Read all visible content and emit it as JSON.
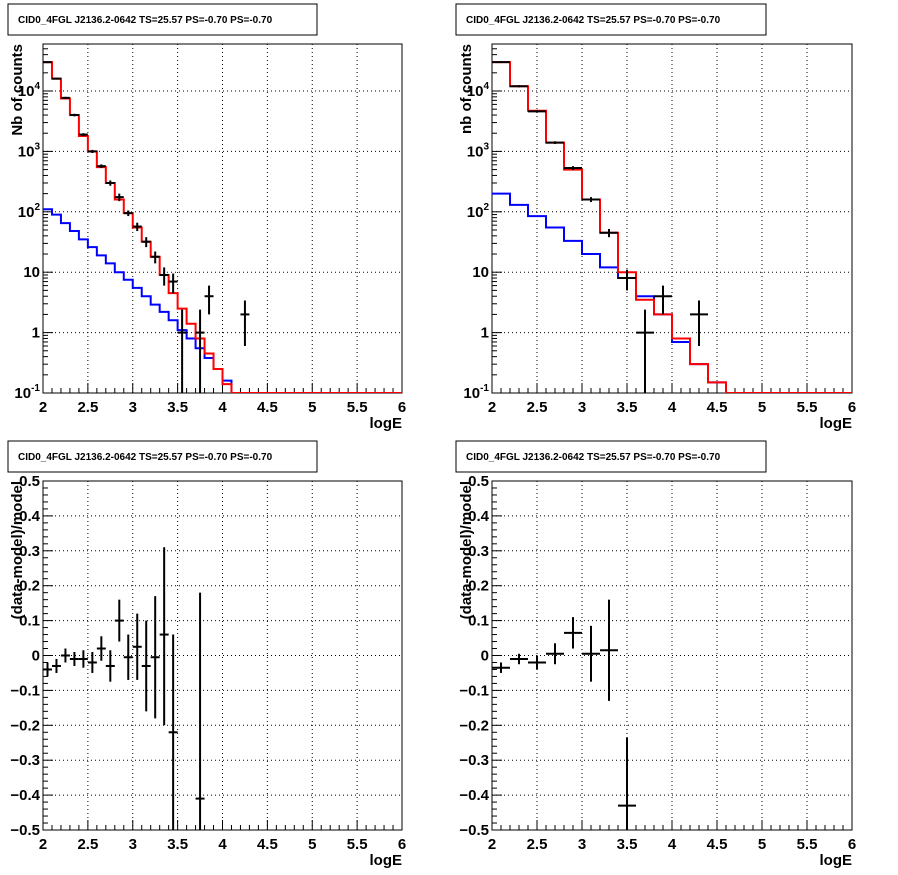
{
  "chart_data": [
    {
      "type": "line",
      "title": "CID0_4FGL J2136.2-0642 TS=25.57 PS=-0.70 PS=-0.70",
      "xlabel": "logE",
      "ylabel": "Nb of counts",
      "xlim": [
        2,
        6
      ],
      "ylim": [
        0.1,
        60000
      ],
      "yscale": "log",
      "grid": true,
      "x_ticks": [
        "2",
        "2.5",
        "3",
        "3.5",
        "4",
        "4.5",
        "5",
        "5.5",
        "6"
      ],
      "y_ticks": [
        {
          "v": 0.1,
          "label": "10",
          "sup": "-1"
        },
        {
          "v": 1,
          "label": "1",
          "sup": ""
        },
        {
          "v": 10,
          "label": "10",
          "sup": ""
        },
        {
          "v": 100,
          "label": "10",
          "sup": "2"
        },
        {
          "v": 1000,
          "label": "10",
          "sup": "3"
        },
        {
          "v": 10000,
          "label": "10",
          "sup": "4"
        }
      ],
      "bin_edges": [
        2,
        2.1,
        2.2,
        2.3,
        2.4,
        2.5,
        2.6,
        2.7,
        2.8,
        2.9,
        3.0,
        3.1,
        3.2,
        3.3,
        3.4,
        3.5,
        3.6,
        3.7,
        3.8,
        3.9,
        4.0,
        4.1,
        4.2,
        4.3,
        4.4,
        4.5,
        4.6,
        4.7,
        4.8,
        4.9,
        5.0,
        5.1,
        5.2,
        5.3,
        5.4,
        5.5,
        5.6,
        5.7,
        5.8,
        5.9,
        6.0
      ],
      "series": [
        {
          "color": "#0000ff",
          "style": "hist",
          "values": [
            110,
            90,
            65,
            48,
            35,
            26,
            19,
            14,
            10,
            7.5,
            5.5,
            4.0,
            2.9,
            2.2,
            1.6,
            1.1,
            0.8,
            0.55,
            0.38,
            0.25,
            0.16,
            0.1,
            0.1,
            0.1,
            0.1,
            0.1,
            0.1,
            0.1,
            0.1,
            0.1,
            0.1,
            0.1,
            0.1,
            0.1,
            0.1,
            0.1,
            0.1,
            0.1,
            0.1,
            0.1
          ]
        },
        {
          "color": "#ff0000",
          "style": "hist",
          "values": [
            30000,
            16000,
            7500,
            4000,
            1800,
            1000,
            550,
            300,
            160,
            95,
            55,
            32,
            18,
            9,
            4.5,
            2.5,
            1.4,
            0.8,
            0.45,
            0.25,
            0.14,
            0.1,
            0.1,
            0.1,
            0.1,
            0.1,
            0.1,
            0.1,
            0.1,
            0.1,
            0.1,
            0.1,
            0.1,
            0.1,
            0.1,
            0.1,
            0.1,
            0.1,
            0.1,
            0.1
          ]
        },
        {
          "color": "#000000",
          "style": "errorbar",
          "points": [
            {
              "x": 2.05,
              "y": 30000,
              "xe": 0.05,
              "lo": 29000,
              "hi": 31000
            },
            {
              "x": 2.15,
              "y": 16000,
              "xe": 0.05,
              "lo": 15500,
              "hi": 16500
            },
            {
              "x": 2.25,
              "y": 7700,
              "xe": 0.05,
              "lo": 7400,
              "hi": 8000
            },
            {
              "x": 2.35,
              "y": 4000,
              "xe": 0.05,
              "lo": 3800,
              "hi": 4200
            },
            {
              "x": 2.45,
              "y": 1900,
              "xe": 0.05,
              "lo": 1800,
              "hi": 2000
            },
            {
              "x": 2.55,
              "y": 1000,
              "xe": 0.05,
              "lo": 940,
              "hi": 1060
            },
            {
              "x": 2.65,
              "y": 570,
              "xe": 0.05,
              "lo": 530,
              "hi": 610
            },
            {
              "x": 2.75,
              "y": 300,
              "xe": 0.05,
              "lo": 270,
              "hi": 330
            },
            {
              "x": 2.85,
              "y": 175,
              "xe": 0.05,
              "lo": 150,
              "hi": 200
            },
            {
              "x": 2.95,
              "y": 95,
              "xe": 0.05,
              "lo": 85,
              "hi": 105
            },
            {
              "x": 3.05,
              "y": 57,
              "xe": 0.05,
              "lo": 48,
              "hi": 66
            },
            {
              "x": 3.15,
              "y": 32,
              "xe": 0.05,
              "lo": 26,
              "hi": 38
            },
            {
              "x": 3.25,
              "y": 18,
              "xe": 0.05,
              "lo": 14,
              "hi": 22
            },
            {
              "x": 3.35,
              "y": 9,
              "xe": 0.05,
              "lo": 6,
              "hi": 12
            },
            {
              "x": 3.45,
              "y": 7,
              "xe": 0.05,
              "lo": 4.5,
              "hi": 9.5
            },
            {
              "x": 3.55,
              "y": 1,
              "xe": 0.05,
              "lo": 0.1,
              "hi": 2.4
            },
            {
              "x": 3.75,
              "y": 1,
              "xe": 0.05,
              "lo": 0.1,
              "hi": 2.4
            },
            {
              "x": 3.85,
              "y": 4,
              "xe": 0.05,
              "lo": 2,
              "hi": 6
            },
            {
              "x": 4.25,
              "y": 2,
              "xe": 0.05,
              "lo": 0.6,
              "hi": 3.4
            }
          ]
        }
      ]
    },
    {
      "type": "line",
      "title": "CID0_4FGL J2136.2-0642 TS=25.57 PS=-0.70 PS=-0.70",
      "xlabel": "logE",
      "ylabel": "nb of counts",
      "xlim": [
        2,
        6
      ],
      "ylim": [
        0.1,
        60000
      ],
      "yscale": "log",
      "grid": true,
      "x_ticks": [
        "2",
        "2.5",
        "3",
        "3.5",
        "4",
        "4.5",
        "5",
        "5.5",
        "6"
      ],
      "y_ticks": [
        {
          "v": 0.1,
          "label": "10",
          "sup": "-1"
        },
        {
          "v": 1,
          "label": "1",
          "sup": ""
        },
        {
          "v": 10,
          "label": "10",
          "sup": ""
        },
        {
          "v": 100,
          "label": "10",
          "sup": "2"
        },
        {
          "v": 1000,
          "label": "10",
          "sup": "3"
        },
        {
          "v": 10000,
          "label": "10",
          "sup": "4"
        }
      ],
      "bin_edges": [
        2,
        2.2,
        2.4,
        2.6,
        2.8,
        3.0,
        3.2,
        3.4,
        3.6,
        3.8,
        4.0,
        4.2,
        4.4,
        4.6,
        4.8,
        5.0,
        5.2,
        5.4,
        5.6,
        5.8,
        6.0
      ],
      "series": [
        {
          "color": "#0000ff",
          "style": "hist",
          "values": [
            200,
            130,
            85,
            55,
            33,
            20,
            12,
            8,
            4,
            2,
            0.7,
            0.3,
            0.15,
            0.1,
            0.1,
            0.1,
            0.1,
            0.1,
            0.1,
            0.1
          ]
        },
        {
          "color": "#ff0000",
          "style": "hist",
          "values": [
            30000,
            12000,
            4700,
            1400,
            500,
            160,
            45,
            10,
            3.5,
            2,
            0.8,
            0.3,
            0.15,
            0.1,
            0.1,
            0.1,
            0.1,
            0.1,
            0.1,
            0.1
          ]
        },
        {
          "color": "#000000",
          "style": "errorbar",
          "points": [
            {
              "x": 2.1,
              "y": 30000,
              "xe": 0.1,
              "lo": 29000,
              "hi": 31000
            },
            {
              "x": 2.3,
              "y": 12000,
              "xe": 0.1,
              "lo": 11500,
              "hi": 12500
            },
            {
              "x": 2.5,
              "y": 4600,
              "xe": 0.1,
              "lo": 4400,
              "hi": 4800
            },
            {
              "x": 2.7,
              "y": 1400,
              "xe": 0.1,
              "lo": 1330,
              "hi": 1470
            },
            {
              "x": 2.9,
              "y": 530,
              "xe": 0.1,
              "lo": 490,
              "hi": 570
            },
            {
              "x": 3.1,
              "y": 160,
              "xe": 0.1,
              "lo": 145,
              "hi": 175
            },
            {
              "x": 3.3,
              "y": 45,
              "xe": 0.1,
              "lo": 38,
              "hi": 52
            },
            {
              "x": 3.5,
              "y": 8,
              "xe": 0.1,
              "lo": 5,
              "hi": 11
            },
            {
              "x": 3.7,
              "y": 1,
              "xe": 0.1,
              "lo": 0.1,
              "hi": 2.4
            },
            {
              "x": 3.9,
              "y": 4,
              "xe": 0.1,
              "lo": 2,
              "hi": 6
            },
            {
              "x": 4.3,
              "y": 2,
              "xe": 0.1,
              "lo": 0.6,
              "hi": 3.4
            }
          ]
        }
      ]
    },
    {
      "type": "scatter",
      "title": "CID0_4FGL J2136.2-0642 TS=25.57 PS=-0.70 PS=-0.70",
      "xlabel": "logE",
      "ylabel": "(data-model)/model",
      "xlim": [
        2,
        6
      ],
      "ylim": [
        -0.5,
        0.5
      ],
      "yscale": "linear",
      "grid": true,
      "x_ticks": [
        "2",
        "2.5",
        "3",
        "3.5",
        "4",
        "4.5",
        "5",
        "5.5",
        "6"
      ],
      "y_ticks": [
        {
          "v": -0.5,
          "label": "−0.5",
          "sup": ""
        },
        {
          "v": -0.4,
          "label": "−0.4",
          "sup": ""
        },
        {
          "v": -0.3,
          "label": "−0.3",
          "sup": ""
        },
        {
          "v": -0.2,
          "label": "−0.2",
          "sup": ""
        },
        {
          "v": -0.1,
          "label": "−0.1",
          "sup": ""
        },
        {
          "v": 0,
          "label": "0",
          "sup": ""
        },
        {
          "v": 0.1,
          "label": "0.1",
          "sup": ""
        },
        {
          "v": 0.2,
          "label": "0.2",
          "sup": ""
        },
        {
          "v": 0.3,
          "label": "0.3",
          "sup": ""
        },
        {
          "v": 0.4,
          "label": "0.4",
          "sup": ""
        },
        {
          "v": 0.5,
          "label": "0.5",
          "sup": ""
        }
      ],
      "series": [
        {
          "color": "#000000",
          "style": "errorbar",
          "points": [
            {
              "x": 2.05,
              "y": -0.04,
              "xe": 0.05,
              "lo": -0.06,
              "hi": -0.02
            },
            {
              "x": 2.15,
              "y": -0.03,
              "xe": 0.05,
              "lo": -0.05,
              "hi": -0.01
            },
            {
              "x": 2.25,
              "y": 0.0,
              "xe": 0.05,
              "lo": -0.02,
              "hi": 0.02
            },
            {
              "x": 2.35,
              "y": -0.01,
              "xe": 0.05,
              "lo": -0.03,
              "hi": 0.01
            },
            {
              "x": 2.45,
              "y": -0.01,
              "xe": 0.05,
              "lo": -0.035,
              "hi": 0.015
            },
            {
              "x": 2.55,
              "y": -0.02,
              "xe": 0.05,
              "lo": -0.05,
              "hi": 0.01
            },
            {
              "x": 2.65,
              "y": 0.02,
              "xe": 0.05,
              "lo": -0.015,
              "hi": 0.055
            },
            {
              "x": 2.75,
              "y": -0.03,
              "xe": 0.05,
              "lo": -0.075,
              "hi": 0.015
            },
            {
              "x": 2.85,
              "y": 0.1,
              "xe": 0.05,
              "lo": 0.04,
              "hi": 0.16
            },
            {
              "x": 2.95,
              "y": -0.005,
              "xe": 0.05,
              "lo": -0.07,
              "hi": 0.06
            },
            {
              "x": 3.05,
              "y": 0.025,
              "xe": 0.05,
              "lo": -0.07,
              "hi": 0.12
            },
            {
              "x": 3.15,
              "y": -0.03,
              "xe": 0.05,
              "lo": -0.16,
              "hi": 0.1
            },
            {
              "x": 3.25,
              "y": -0.005,
              "xe": 0.05,
              "lo": -0.18,
              "hi": 0.17
            },
            {
              "x": 3.35,
              "y": 0.06,
              "xe": 0.05,
              "lo": -0.2,
              "hi": 0.31
            },
            {
              "x": 3.45,
              "y": -0.22,
              "xe": 0.05,
              "lo": -0.5,
              "hi": 0.06
            },
            {
              "x": 3.75,
              "y": -0.41,
              "xe": 0.05,
              "lo": -0.5,
              "hi": 0.18
            }
          ]
        }
      ]
    },
    {
      "type": "scatter",
      "title": "CID0_4FGL J2136.2-0642 TS=25.57 PS=-0.70 PS=-0.70",
      "xlabel": "logE",
      "ylabel": "(data-model)/model",
      "xlim": [
        2,
        6
      ],
      "ylim": [
        -0.5,
        0.5
      ],
      "yscale": "linear",
      "grid": true,
      "x_ticks": [
        "2",
        "2.5",
        "3",
        "3.5",
        "4",
        "4.5",
        "5",
        "5.5",
        "6"
      ],
      "y_ticks": [
        {
          "v": -0.5,
          "label": "−0.5",
          "sup": ""
        },
        {
          "v": -0.4,
          "label": "−0.4",
          "sup": ""
        },
        {
          "v": -0.3,
          "label": "−0.3",
          "sup": ""
        },
        {
          "v": -0.2,
          "label": "−0.2",
          "sup": ""
        },
        {
          "v": -0.1,
          "label": "−0.1",
          "sup": ""
        },
        {
          "v": 0,
          "label": "0",
          "sup": ""
        },
        {
          "v": 0.1,
          "label": "0.1",
          "sup": ""
        },
        {
          "v": 0.2,
          "label": "0.2",
          "sup": ""
        },
        {
          "v": 0.3,
          "label": "0.3",
          "sup": ""
        },
        {
          "v": 0.4,
          "label": "0.4",
          "sup": ""
        },
        {
          "v": 0.5,
          "label": "0.5",
          "sup": ""
        }
      ],
      "series": [
        {
          "color": "#000000",
          "style": "errorbar",
          "points": [
            {
              "x": 2.1,
              "y": -0.035,
              "xe": 0.1,
              "lo": -0.05,
              "hi": -0.02
            },
            {
              "x": 2.3,
              "y": -0.01,
              "xe": 0.1,
              "lo": -0.025,
              "hi": 0.005
            },
            {
              "x": 2.5,
              "y": -0.02,
              "xe": 0.1,
              "lo": -0.04,
              "hi": 0.0
            },
            {
              "x": 2.7,
              "y": 0.005,
              "xe": 0.1,
              "lo": -0.025,
              "hi": 0.035
            },
            {
              "x": 2.9,
              "y": 0.065,
              "xe": 0.1,
              "lo": 0.02,
              "hi": 0.11
            },
            {
              "x": 3.1,
              "y": 0.005,
              "xe": 0.1,
              "lo": -0.075,
              "hi": 0.085
            },
            {
              "x": 3.3,
              "y": 0.015,
              "xe": 0.1,
              "lo": -0.13,
              "hi": 0.16
            },
            {
              "x": 3.5,
              "y": -0.43,
              "xe": 0.1,
              "lo": -0.5,
              "hi": -0.235
            }
          ]
        }
      ]
    }
  ]
}
